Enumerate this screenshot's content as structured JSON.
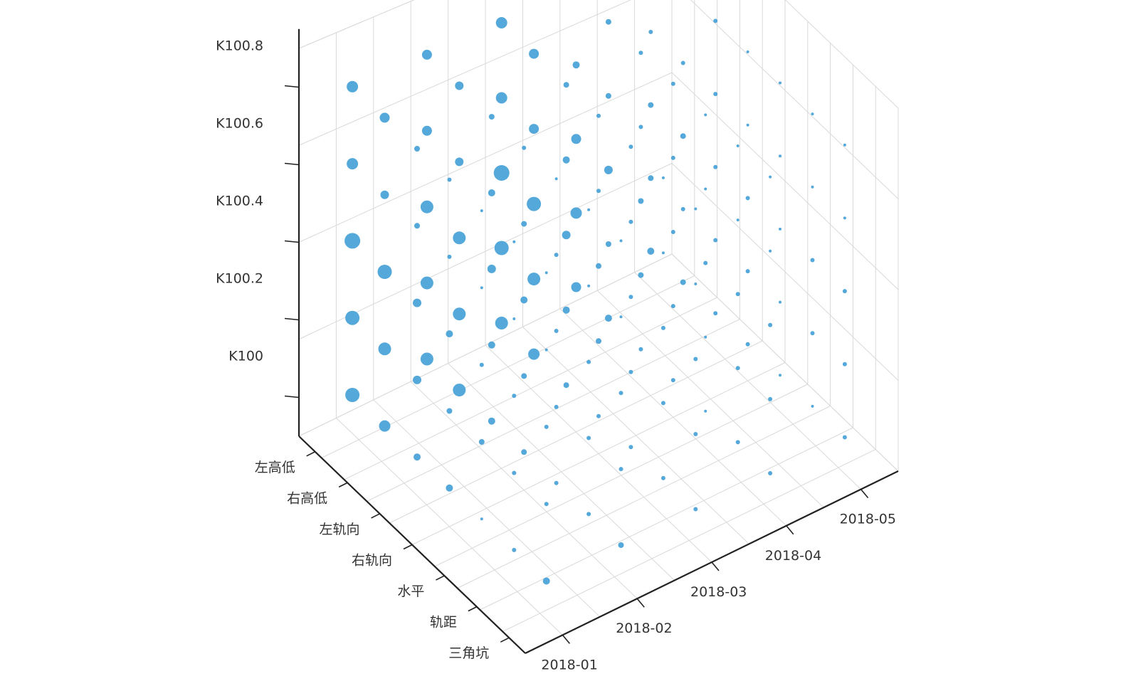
{
  "chart_data": {
    "type": "scatter",
    "variant": "3d-bubble",
    "title": "",
    "x_axis": {
      "label": "",
      "ticks": [
        "2018-01",
        "2018-02",
        "2018-03",
        "2018-04",
        "2018-05"
      ]
    },
    "y_axis": {
      "label": "",
      "ticks": [
        "三角坑",
        "轨距",
        "水平",
        "右轨向",
        "左轨向",
        "右高低",
        "左高低"
      ]
    },
    "z_axis": {
      "label": "",
      "ticks": [
        "K100",
        "K100.2",
        "K100.4",
        "K100.6",
        "K100.8"
      ]
    },
    "grid": true,
    "legend": "none",
    "colors": {
      "point": "#4ba3d8",
      "axis": "#222222",
      "grid": "#d9d9d9",
      "text": "#333333"
    },
    "series": [
      {
        "points": [
          [
            "2018-01",
            "三角坑",
            "K100",
            5
          ],
          [
            "2018-01",
            "轨距",
            "K100",
            3
          ],
          [
            "2018-01",
            "水平",
            "K100",
            2
          ],
          [
            "2018-01",
            "右轨向",
            "K100",
            5
          ],
          [
            "2018-01",
            "左轨向",
            "K100",
            5
          ],
          [
            "2018-01",
            "右高低",
            "K100",
            8
          ],
          [
            "2018-01",
            "左高低",
            "K100",
            10
          ],
          [
            "2018-02",
            "三角坑",
            "K100",
            4
          ],
          [
            "2018-02",
            "轨距",
            "K100",
            3
          ],
          [
            "2018-02",
            "水平",
            "K100",
            3
          ],
          [
            "2018-02",
            "右轨向",
            "K100",
            4
          ],
          [
            "2018-02",
            "左轨向",
            "K100",
            5
          ],
          [
            "2018-02",
            "右高低",
            "K100",
            9
          ],
          [
            "2018-02",
            "左高低",
            "K100",
            9
          ],
          [
            "2018-03",
            "三角坑",
            "K100",
            3
          ],
          [
            "2018-03",
            "轨距",
            "K100",
            3
          ],
          [
            "2018-03",
            "水平",
            "K100",
            3
          ],
          [
            "2018-03",
            "右轨向",
            "K100",
            3
          ],
          [
            "2018-03",
            "左轨向",
            "K100",
            4
          ],
          [
            "2018-03",
            "右高低",
            "K100",
            8
          ],
          [
            "2018-03",
            "左高低",
            "K100",
            9
          ],
          [
            "2018-04",
            "三角坑",
            "K100",
            3
          ],
          [
            "2018-04",
            "轨距",
            "K100",
            3
          ],
          [
            "2018-04",
            "水平",
            "K100",
            2
          ],
          [
            "2018-04",
            "右轨向",
            "K100",
            3
          ],
          [
            "2018-04",
            "左轨向",
            "K100",
            3
          ],
          [
            "2018-04",
            "右高低",
            "K100",
            5
          ],
          [
            "2018-04",
            "左高低",
            "K100",
            7
          ],
          [
            "2018-05",
            "三角坑",
            "K100",
            3
          ],
          [
            "2018-05",
            "轨距",
            "K100",
            2
          ],
          [
            "2018-05",
            "水平",
            "K100",
            2
          ],
          [
            "2018-05",
            "右轨向",
            "K100",
            3
          ],
          [
            "2018-05",
            "左轨向",
            "K100",
            3
          ],
          [
            "2018-05",
            "右高低",
            "K100",
            4
          ],
          [
            "2018-05",
            "左高低",
            "K100",
            5
          ],
          [
            "2018-01",
            "三角坑",
            "K100.2",
            3
          ],
          [
            "2018-01",
            "轨距",
            "K100.2",
            3
          ],
          [
            "2018-01",
            "水平",
            "K100.2",
            4
          ],
          [
            "2018-01",
            "右轨向",
            "K100.2",
            4
          ],
          [
            "2018-01",
            "左轨向",
            "K100.2",
            6
          ],
          [
            "2018-01",
            "右高低",
            "K100.2",
            9
          ],
          [
            "2018-01",
            "左高低",
            "K100.2",
            10
          ],
          [
            "2018-02",
            "三角坑",
            "K100.2",
            3
          ],
          [
            "2018-02",
            "轨距",
            "K100.2",
            3
          ],
          [
            "2018-02",
            "水平",
            "K100.2",
            3
          ],
          [
            "2018-02",
            "右轨向",
            "K100.2",
            4
          ],
          [
            "2018-02",
            "左轨向",
            "K100.2",
            5
          ],
          [
            "2018-02",
            "右高低",
            "K100.2",
            9
          ],
          [
            "2018-02",
            "左高低",
            "K100.2",
            9
          ],
          [
            "2018-03",
            "三角坑",
            "K100.2",
            3
          ],
          [
            "2018-03",
            "轨距",
            "K100.2",
            3
          ],
          [
            "2018-03",
            "水平",
            "K100.2",
            3
          ],
          [
            "2018-03",
            "右轨向",
            "K100.2",
            4
          ],
          [
            "2018-03",
            "左轨向",
            "K100.2",
            5
          ],
          [
            "2018-03",
            "右高低",
            "K100.2",
            9
          ],
          [
            "2018-03",
            "左高低",
            "K100.2",
            10
          ],
          [
            "2018-04",
            "三角坑",
            "K100.2",
            3
          ],
          [
            "2018-04",
            "轨距",
            "K100.2",
            3
          ],
          [
            "2018-04",
            "水平",
            "K100.2",
            2
          ],
          [
            "2018-04",
            "右轨向",
            "K100.2",
            3
          ],
          [
            "2018-04",
            "左轨向",
            "K100.2",
            4
          ],
          [
            "2018-04",
            "右高低",
            "K100.2",
            4
          ],
          [
            "2018-04",
            "左高低",
            "K100.2",
            8
          ],
          [
            "2018-05",
            "三角坑",
            "K100.2",
            3
          ],
          [
            "2018-05",
            "轨距",
            "K100.2",
            3
          ],
          [
            "2018-05",
            "水平",
            "K100.2",
            2
          ],
          [
            "2018-05",
            "右轨向",
            "K100.2",
            3
          ],
          [
            "2018-05",
            "左轨向",
            "K100.2",
            3
          ],
          [
            "2018-05",
            "右高低",
            "K100.2",
            3
          ],
          [
            "2018-05",
            "左高低",
            "K100.2",
            4
          ],
          [
            "2018-01",
            "三角坑",
            "K100.4",
            3
          ],
          [
            "2018-01",
            "轨距",
            "K100.4",
            3
          ],
          [
            "2018-01",
            "水平",
            "K100.4",
            3
          ],
          [
            "2018-01",
            "右轨向",
            "K100.4",
            5
          ],
          [
            "2018-01",
            "左轨向",
            "K100.4",
            6
          ],
          [
            "2018-01",
            "右高低",
            "K100.4",
            10
          ],
          [
            "2018-01",
            "左高低",
            "K100.4",
            11
          ],
          [
            "2018-02",
            "三角坑",
            "K100.4",
            3
          ],
          [
            "2018-02",
            "轨距",
            "K100.4",
            3
          ],
          [
            "2018-02",
            "水平",
            "K100.4",
            3
          ],
          [
            "2018-02",
            "右轨向",
            "K100.4",
            5
          ],
          [
            "2018-02",
            "左轨向",
            "K100.4",
            6
          ],
          [
            "2018-02",
            "右高低",
            "K100.4",
            9
          ],
          [
            "2018-02",
            "左高低",
            "K100.4",
            9
          ],
          [
            "2018-03",
            "三角坑",
            "K100.4",
            3
          ],
          [
            "2018-03",
            "轨距",
            "K100.4",
            3
          ],
          [
            "2018-03",
            "水平",
            "K100.4",
            3
          ],
          [
            "2018-03",
            "右轨向",
            "K100.4",
            4
          ],
          [
            "2018-03",
            "左轨向",
            "K100.4",
            6
          ],
          [
            "2018-03",
            "右高低",
            "K100.4",
            10
          ],
          [
            "2018-03",
            "左高低",
            "K100.4",
            11
          ],
          [
            "2018-04",
            "三角坑",
            "K100.4",
            3
          ],
          [
            "2018-04",
            "轨距",
            "K100.4",
            3
          ],
          [
            "2018-04",
            "水平",
            "K100.4",
            3
          ],
          [
            "2018-04",
            "右轨向",
            "K100.4",
            3
          ],
          [
            "2018-04",
            "左轨向",
            "K100.4",
            4
          ],
          [
            "2018-04",
            "右高低",
            "K100.4",
            6
          ],
          [
            "2018-04",
            "左高低",
            "K100.4",
            7
          ],
          [
            "2018-05",
            "三角坑",
            "K100.4",
            3
          ],
          [
            "2018-05",
            "轨距",
            "K100.4",
            3
          ],
          [
            "2018-05",
            "水平",
            "K100.4",
            2
          ],
          [
            "2018-05",
            "右轨向",
            "K100.4",
            3
          ],
          [
            "2018-05",
            "左轨向",
            "K100.4",
            3
          ],
          [
            "2018-05",
            "右高低",
            "K100.4",
            4
          ],
          [
            "2018-05",
            "左高低",
            "K100.4",
            4
          ],
          [
            "2018-01",
            "三角坑",
            "K100.6",
            2
          ],
          [
            "2018-01",
            "轨距",
            "K100.6",
            2
          ],
          [
            "2018-01",
            "水平",
            "K100.6",
            2
          ],
          [
            "2018-01",
            "右轨向",
            "K100.6",
            3
          ],
          [
            "2018-01",
            "左轨向",
            "K100.6",
            4
          ],
          [
            "2018-01",
            "右高低",
            "K100.6",
            6
          ],
          [
            "2018-01",
            "左高低",
            "K100.6",
            8
          ],
          [
            "2018-02",
            "三角坑",
            "K100.6",
            2
          ],
          [
            "2018-02",
            "轨距",
            "K100.6",
            2
          ],
          [
            "2018-02",
            "水平",
            "K100.6",
            3
          ],
          [
            "2018-02",
            "右轨向",
            "K100.6",
            4
          ],
          [
            "2018-02",
            "左轨向",
            "K100.6",
            5
          ],
          [
            "2018-02",
            "右高低",
            "K100.6",
            6
          ],
          [
            "2018-02",
            "左高低",
            "K100.6",
            7
          ],
          [
            "2018-03",
            "三角坑",
            "K100.6",
            2
          ],
          [
            "2018-03",
            "轨距",
            "K100.6",
            2
          ],
          [
            "2018-03",
            "水平",
            "K100.6",
            3
          ],
          [
            "2018-03",
            "右轨向",
            "K100.6",
            3
          ],
          [
            "2018-03",
            "左轨向",
            "K100.6",
            5
          ],
          [
            "2018-03",
            "右高低",
            "K100.6",
            7
          ],
          [
            "2018-03",
            "左高低",
            "K100.6",
            8
          ],
          [
            "2018-04",
            "三角坑",
            "K100.6",
            2
          ],
          [
            "2018-04",
            "轨距",
            "K100.6",
            2
          ],
          [
            "2018-04",
            "水平",
            "K100.6",
            2
          ],
          [
            "2018-04",
            "右轨向",
            "K100.6",
            3
          ],
          [
            "2018-04",
            "左轨向",
            "K100.6",
            3
          ],
          [
            "2018-04",
            "右高低",
            "K100.6",
            4
          ],
          [
            "2018-04",
            "左高低",
            "K100.6",
            5
          ],
          [
            "2018-05",
            "三角坑",
            "K100.6",
            2
          ],
          [
            "2018-05",
            "轨距",
            "K100.6",
            2
          ],
          [
            "2018-05",
            "水平",
            "K100.6",
            2
          ],
          [
            "2018-05",
            "右轨向",
            "K100.6",
            2
          ],
          [
            "2018-05",
            "左轨向",
            "K100.6",
            3
          ],
          [
            "2018-05",
            "右高低",
            "K100.6",
            3
          ],
          [
            "2018-05",
            "左高低",
            "K100.6",
            3
          ],
          [
            "2018-01",
            "三角坑",
            "K100.8",
            2
          ],
          [
            "2018-01",
            "轨距",
            "K100.8",
            2
          ],
          [
            "2018-01",
            "水平",
            "K100.8",
            2
          ],
          [
            "2018-01",
            "右轨向",
            "K100.8",
            3
          ],
          [
            "2018-01",
            "左轨向",
            "K100.8",
            4
          ],
          [
            "2018-01",
            "右高低",
            "K100.8",
            7
          ],
          [
            "2018-01",
            "左高低",
            "K100.8",
            8
          ],
          [
            "2018-02",
            "三角坑",
            "K100.8",
            2
          ],
          [
            "2018-02",
            "轨距",
            "K100.8",
            2
          ],
          [
            "2018-02",
            "水平",
            "K100.8",
            2
          ],
          [
            "2018-02",
            "右轨向",
            "K100.8",
            3
          ],
          [
            "2018-02",
            "左轨向",
            "K100.8",
            4
          ],
          [
            "2018-02",
            "右高低",
            "K100.8",
            6
          ],
          [
            "2018-02",
            "左高低",
            "K100.8",
            7
          ],
          [
            "2018-03",
            "三角坑",
            "K100.8",
            2
          ],
          [
            "2018-03",
            "轨距",
            "K100.8",
            2
          ],
          [
            "2018-03",
            "水平",
            "K100.8",
            3
          ],
          [
            "2018-03",
            "右轨向",
            "K100.8",
            3
          ],
          [
            "2018-03",
            "左轨向",
            "K100.8",
            4
          ],
          [
            "2018-03",
            "右高低",
            "K100.8",
            7
          ],
          [
            "2018-03",
            "左高低",
            "K100.8",
            8
          ],
          [
            "2018-04",
            "三角坑",
            "K100.8",
            2
          ],
          [
            "2018-04",
            "轨距",
            "K100.8",
            2
          ],
          [
            "2018-04",
            "水平",
            "K100.8",
            2
          ],
          [
            "2018-04",
            "右轨向",
            "K100.8",
            3
          ],
          [
            "2018-04",
            "左轨向",
            "K100.8",
            3
          ],
          [
            "2018-04",
            "右高低",
            "K100.8",
            4
          ],
          [
            "2018-04",
            "左高低",
            "K100.8",
            6
          ],
          [
            "2018-05",
            "三角坑",
            "K100.8",
            2
          ],
          [
            "2018-05",
            "轨距",
            "K100.8",
            2
          ],
          [
            "2018-05",
            "水平",
            "K100.8",
            2
          ],
          [
            "2018-05",
            "右轨向",
            "K100.8",
            2
          ],
          [
            "2018-05",
            "左轨向",
            "K100.8",
            3
          ],
          [
            "2018-05",
            "右高低",
            "K100.8",
            3
          ],
          [
            "2018-05",
            "左高低",
            "K100.8",
            4
          ]
        ]
      }
    ]
  }
}
